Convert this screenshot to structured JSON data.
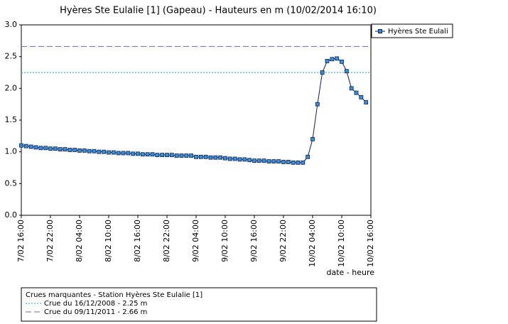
{
  "chart_data": {
    "type": "line",
    "title": "Hyères Ste Eulalie [1] (Gapeau) - Hauteurs en m (10/02/2014 16:10)",
    "x_label": "date - heure",
    "x": [
      0,
      1,
      2,
      3,
      4,
      5,
      6,
      7,
      8,
      9,
      10,
      11,
      12,
      13,
      14,
      15,
      16,
      17,
      18,
      19,
      20,
      21,
      22,
      23,
      24,
      25,
      26,
      27,
      28,
      29,
      30,
      31,
      32,
      33,
      34,
      35,
      36,
      37,
      38,
      39,
      40,
      41,
      42,
      43,
      44,
      45,
      46,
      47,
      48,
      49,
      50,
      51,
      52,
      53,
      54,
      55,
      56,
      57,
      58,
      59,
      60,
      61,
      62,
      63,
      64,
      65,
      66,
      67,
      68,
      69,
      70,
      71
    ],
    "series": [
      {
        "name": "Hyères Ste Eulali",
        "color": "#3a8fd0",
        "line_color": "#0a1e5a",
        "values": [
          1.1,
          1.09,
          1.08,
          1.07,
          1.06,
          1.06,
          1.05,
          1.05,
          1.04,
          1.04,
          1.03,
          1.03,
          1.02,
          1.02,
          1.01,
          1.01,
          1.0,
          1.0,
          0.99,
          0.99,
          0.98,
          0.98,
          0.98,
          0.97,
          0.97,
          0.96,
          0.96,
          0.96,
          0.95,
          0.95,
          0.95,
          0.95,
          0.94,
          0.94,
          0.94,
          0.94,
          0.92,
          0.92,
          0.92,
          0.91,
          0.91,
          0.91,
          0.9,
          0.89,
          0.89,
          0.88,
          0.88,
          0.87,
          0.86,
          0.86,
          0.86,
          0.85,
          0.85,
          0.85,
          0.84,
          0.84,
          0.83,
          0.83,
          0.83,
          0.92,
          1.2,
          1.75,
          2.25,
          2.43,
          2.46,
          2.47,
          2.42,
          2.27,
          2.0,
          1.93,
          1.86,
          1.78
        ]
      }
    ],
    "xlim": [
      0,
      72
    ],
    "xticks": [
      {
        "value": 0,
        "label": "7/02 16:00"
      },
      {
        "value": 6,
        "label": "7/02 22:00"
      },
      {
        "value": 12,
        "label": "8/02 04:00"
      },
      {
        "value": 18,
        "label": "8/02 10:00"
      },
      {
        "value": 24,
        "label": "8/02 16:00"
      },
      {
        "value": 30,
        "label": "8/02 22:00"
      },
      {
        "value": 36,
        "label": "9/02 04:00"
      },
      {
        "value": 42,
        "label": "9/02 10:00"
      },
      {
        "value": 48,
        "label": "9/02 16:00"
      },
      {
        "value": 54,
        "label": "9/02 22:00"
      },
      {
        "value": 60,
        "label": "10/02 04:00"
      },
      {
        "value": 66,
        "label": "10/02 10:00"
      },
      {
        "value": 72,
        "label": "10/02 16:00"
      }
    ],
    "ylim": [
      0,
      3
    ],
    "yticks": [
      {
        "value": 0,
        "label": "0.0"
      },
      0.5,
      {
        "value": 1,
        "label": "1.0"
      },
      1.5,
      {
        "value": 2,
        "label": "2.0"
      },
      2.5,
      {
        "value": 3,
        "label": "3.0"
      }
    ],
    "reference_title": "Crues marquantes - Station Hyères Ste Eulalie [1]",
    "reference_lines": [
      {
        "label": "Crue du 16/12/2008 - 2.25 m",
        "value": 2.25,
        "style": "dotted",
        "color": "#2a9bd6"
      },
      {
        "label": "Crue du 09/11/2011 - 2.66 m",
        "value": 2.66,
        "style": "dashed",
        "color": "#6a6ab8"
      }
    ]
  }
}
